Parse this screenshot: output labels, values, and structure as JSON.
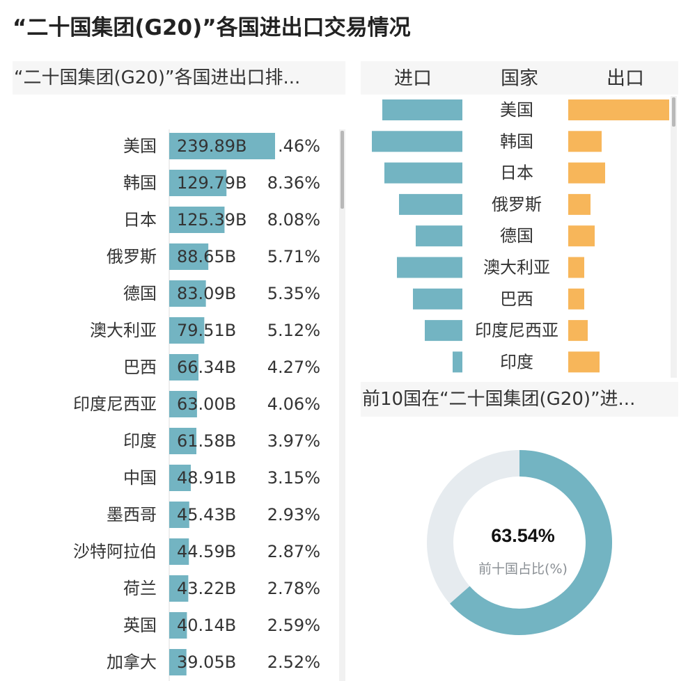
{
  "page_title": "“二十国集团(G20)”各国进出口交易情况",
  "colors": {
    "import": "#73b4c2",
    "export": "#f7b65a",
    "track": "#e6ebef",
    "header_bg": "#f6f6f6"
  },
  "chart_data": [
    {
      "type": "bar",
      "title": "“二十国集团(G20)”各国进出口排...",
      "orientation": "horizontal",
      "categories": [
        "美国",
        "韩国",
        "日本",
        "俄罗斯",
        "德国",
        "澳大利亚",
        "巴西",
        "印度尼西亚",
        "印度",
        "中国",
        "墨西哥",
        "沙特阿拉伯",
        "荷兰",
        "英国",
        "加拿大"
      ],
      "value_labels": [
        "239.89B",
        "129.79B",
        "125.39B",
        "88.65B",
        "83.09B",
        "79.51B",
        "66.34B",
        "63.00B",
        "61.58B",
        "48.91B",
        "45.43B",
        "44.59B",
        "43.22B",
        "40.14B",
        "39.05B"
      ],
      "values": [
        239.89,
        129.79,
        125.39,
        88.65,
        83.09,
        79.51,
        66.34,
        63.0,
        61.58,
        48.91,
        45.43,
        44.59,
        43.22,
        40.14,
        39.05
      ],
      "percent_labels": [
        ".46%",
        "8.36%",
        "8.08%",
        "5.71%",
        "5.35%",
        "5.12%",
        "4.27%",
        "4.06%",
        "3.97%",
        "3.15%",
        "2.93%",
        "2.87%",
        "2.78%",
        "2.59%",
        "2.52%"
      ],
      "unit": "B"
    },
    {
      "type": "bar",
      "subtype": "butterfly",
      "headers": {
        "left": "进口",
        "center": "国家",
        "right": "出口"
      },
      "categories": [
        "美国",
        "韩国",
        "日本",
        "俄罗斯",
        "德国",
        "澳大利亚",
        "巴西",
        "印度尼西亚",
        "印度"
      ],
      "series": [
        {
          "name": "进口",
          "values": [
            115,
            130,
            112,
            91,
            67,
            94,
            71,
            54,
            14
          ]
        },
        {
          "name": "出口",
          "values": [
            145,
            48,
            53,
            32,
            38,
            23,
            23,
            28,
            45
          ]
        }
      ]
    },
    {
      "type": "pie",
      "subtype": "donut",
      "title": "前10国在“二十国集团(G20)”进...",
      "value": 63.54,
      "center_value": "63.54%",
      "center_label": "前十国占比(%)"
    }
  ]
}
